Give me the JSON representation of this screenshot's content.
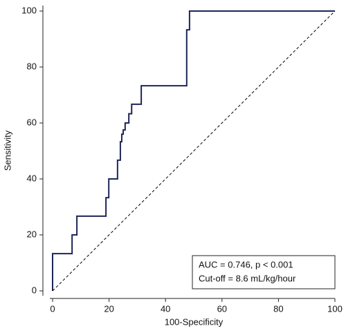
{
  "chart_data": {
    "type": "line",
    "x_label": "100-Specificity",
    "y_label": "Sensitivity",
    "series": [
      {
        "color": "#1c2557",
        "x": [
          0,
          0,
          6.9,
          6.9,
          8.6,
          8.6,
          18.9,
          18.9,
          19.9,
          19.9,
          23,
          23,
          24,
          24,
          24.5,
          24.5,
          25,
          25,
          25.7,
          25.7,
          27,
          27,
          28,
          28,
          31.4,
          31.4,
          47.5,
          47.5,
          48.5,
          48.5,
          100
        ],
        "values": [
          0,
          13.3,
          13.3,
          20,
          20,
          26.7,
          26.7,
          33.3,
          33.3,
          40,
          40,
          46.7,
          46.7,
          53.3,
          53.3,
          56,
          56,
          57.5,
          57.5,
          60,
          60,
          63.3,
          63.3,
          66.7,
          66.7,
          73.3,
          73.3,
          93.3,
          93.3,
          100,
          100
        ]
      },
      {
        "color": "#000000",
        "dashed": true,
        "x": [
          0,
          100
        ],
        "values": [
          0,
          100
        ]
      }
    ],
    "xlim": [
      0,
      100
    ],
    "xticks": [
      0,
      20,
      40,
      60,
      80,
      100
    ],
    "ylim": [
      0,
      100
    ],
    "yticks": [
      0,
      20,
      40,
      60,
      80,
      100
    ],
    "annotations": [
      "AUC = 0.746, p < 0.001",
      "Cut-off = 8.6 mL/kg/hour"
    ]
  }
}
